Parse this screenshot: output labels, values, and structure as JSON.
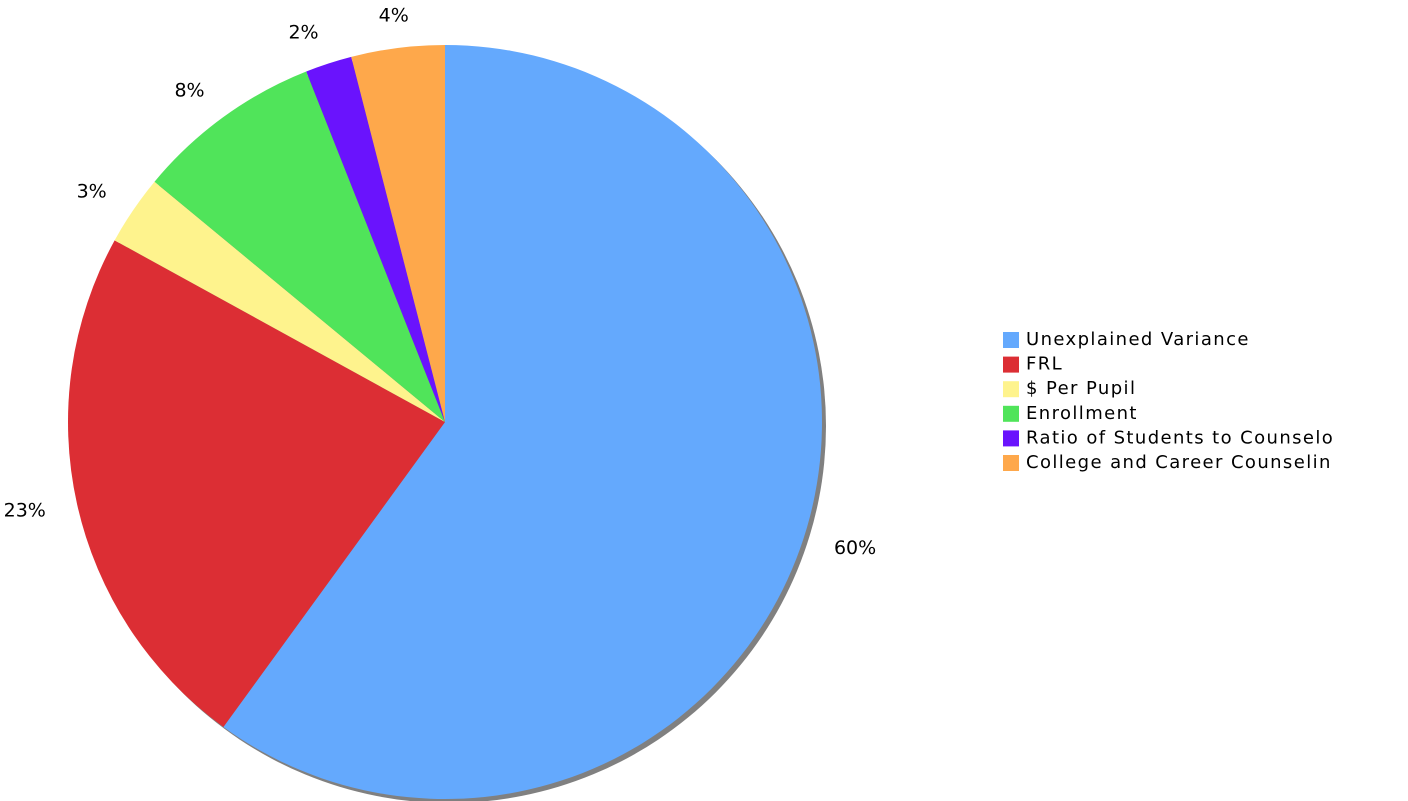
{
  "chart_data": {
    "type": "pie",
    "categories": [
      "Unexplained Variance",
      "FRL",
      "$ Per Pupil",
      "Enrollment",
      "Ratio of Students to Counselo",
      "College and Career Counselin"
    ],
    "values": [
      60,
      23,
      3,
      8,
      2,
      4
    ],
    "value_labels": [
      "60%",
      "23%",
      "3%",
      "8%",
      "2%",
      "4%"
    ],
    "colors": [
      "#64a9fd",
      "#dc2e34",
      "#fef38d",
      "#50e45a",
      "#6a13fd",
      "#fea84b"
    ],
    "legend": "right"
  }
}
